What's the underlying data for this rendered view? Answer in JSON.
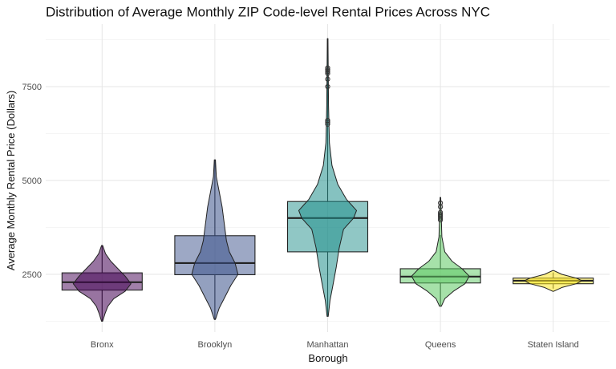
{
  "chart_data": {
    "type": "violin-box",
    "title": "Distribution of Average Monthly ZIP Code-level Rental Prices Across NYC",
    "xlabel": "Borough",
    "ylabel": "Average Monthly Rental Price (Dollars)",
    "ylim": [
      1100,
      8900
    ],
    "yticks": [
      2500,
      5000,
      7500
    ],
    "grid": true,
    "categories": [
      "Bronx",
      "Brooklyn",
      "Manhattan",
      "Queens",
      "Staten Island"
    ],
    "colors": [
      "#440154",
      "#3b528b",
      "#21908c",
      "#5dc963",
      "#fde725"
    ],
    "series": [
      {
        "category": "Bronx",
        "box": {
          "q1": 2080,
          "median": 2290,
          "q3": 2540,
          "whisker_low": 1250,
          "whisker_high": 3270
        },
        "outliers": [],
        "violin": [
          [
            1250,
            0.02
          ],
          [
            1450,
            0.1
          ],
          [
            1650,
            0.2
          ],
          [
            1850,
            0.4
          ],
          [
            2050,
            0.8
          ],
          [
            2250,
            1.0
          ],
          [
            2450,
            0.8
          ],
          [
            2650,
            0.55
          ],
          [
            2850,
            0.3
          ],
          [
            3050,
            0.12
          ],
          [
            3270,
            0.02
          ]
        ]
      },
      {
        "category": "Brooklyn",
        "box": {
          "q1": 2490,
          "median": 2800,
          "q3": 3530,
          "whisker_low": 1300,
          "whisker_high": 5550
        },
        "outliers": [],
        "violin": [
          [
            1300,
            0.02
          ],
          [
            1600,
            0.15
          ],
          [
            1900,
            0.35
          ],
          [
            2200,
            0.55
          ],
          [
            2500,
            0.8
          ],
          [
            2800,
            0.7
          ],
          [
            3100,
            0.5
          ],
          [
            3400,
            0.4
          ],
          [
            3700,
            0.35
          ],
          [
            4000,
            0.3
          ],
          [
            4300,
            0.25
          ],
          [
            4700,
            0.15
          ],
          [
            5100,
            0.05
          ],
          [
            5550,
            0.02
          ]
        ]
      },
      {
        "category": "Manhattan",
        "box": {
          "q1": 3100,
          "median": 4000,
          "q3": 4440,
          "whisker_low": 1380,
          "whisker_high": 8780
        },
        "outliers": [
          6500,
          6550,
          6600,
          7500,
          7700,
          7850,
          7900,
          7950,
          8000
        ],
        "violin": [
          [
            1380,
            0.02
          ],
          [
            1800,
            0.08
          ],
          [
            2200,
            0.18
          ],
          [
            2700,
            0.3
          ],
          [
            3200,
            0.4
          ],
          [
            3700,
            0.55
          ],
          [
            4000,
            0.9
          ],
          [
            4200,
            1.0
          ],
          [
            4500,
            0.65
          ],
          [
            4900,
            0.35
          ],
          [
            5400,
            0.15
          ],
          [
            6000,
            0.06
          ],
          [
            7000,
            0.03
          ],
          [
            8000,
            0.02
          ],
          [
            8780,
            0.01
          ]
        ]
      },
      {
        "category": "Queens",
        "box": {
          "q1": 2270,
          "median": 2440,
          "q3": 2650,
          "whisker_low": 1650,
          "whisker_high": 3550
        },
        "outliers": [
          3950,
          4000,
          4050,
          4100,
          4150,
          4300,
          4400
        ],
        "violin": [
          [
            1650,
            0.03
          ],
          [
            1850,
            0.15
          ],
          [
            2050,
            0.45
          ],
          [
            2250,
            0.85
          ],
          [
            2450,
            1.0
          ],
          [
            2650,
            0.75
          ],
          [
            2850,
            0.4
          ],
          [
            3100,
            0.15
          ],
          [
            3500,
            0.05
          ],
          [
            4000,
            0.03
          ],
          [
            4550,
            0.01
          ]
        ]
      },
      {
        "category": "Staten Island",
        "box": {
          "q1": 2250,
          "median": 2330,
          "q3": 2400,
          "whisker_low": 2120,
          "whisker_high": 2550
        },
        "outliers": [],
        "violin": [
          [
            2050,
            0.02
          ],
          [
            2150,
            0.3
          ],
          [
            2250,
            0.8
          ],
          [
            2330,
            1.0
          ],
          [
            2400,
            0.8
          ],
          [
            2500,
            0.3
          ],
          [
            2600,
            0.02
          ]
        ]
      }
    ]
  }
}
